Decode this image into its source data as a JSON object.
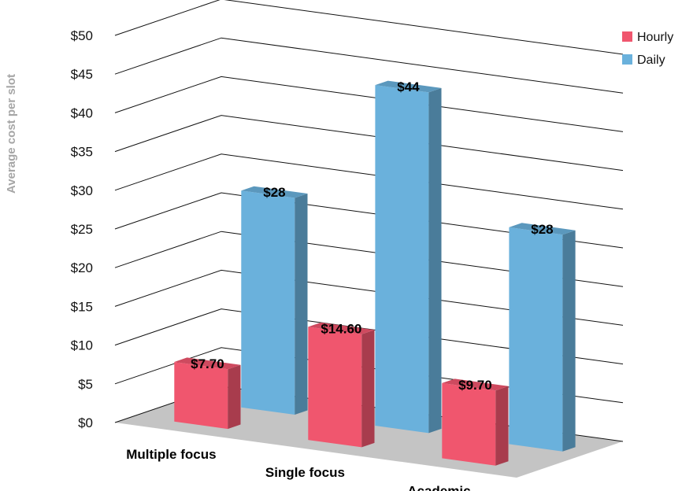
{
  "chart_data": {
    "type": "bar",
    "title": "",
    "xlabel": "",
    "ylabel": "Average cost per slot",
    "categories": [
      "Multiple focus",
      "Single focus",
      "Academic"
    ],
    "series": [
      {
        "name": "Hourly",
        "values": [
          7.7,
          14.6,
          9.7
        ],
        "labels": [
          "$7.70",
          "$14.60",
          "$9.70"
        ],
        "color": "#f0566e"
      },
      {
        "name": "Daily",
        "values": [
          28,
          44,
          28
        ],
        "labels": [
          "$28",
          "$44",
          "$28"
        ],
        "color": "#6ab1dc"
      }
    ],
    "ylim": [
      0,
      50
    ],
    "yticks": [
      "$0",
      "$5",
      "$10",
      "$15",
      "$20",
      "$25",
      "$30",
      "$35",
      "$40",
      "$45",
      "$50"
    ],
    "grid": true,
    "legend": "right",
    "three_d": true
  }
}
